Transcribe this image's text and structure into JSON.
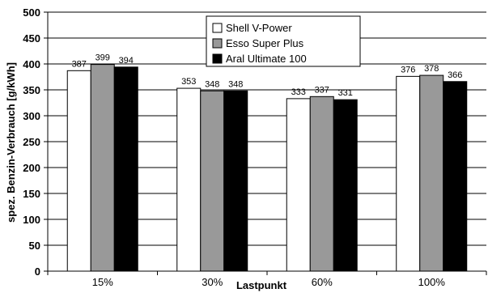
{
  "chart_data": {
    "type": "bar",
    "title": "",
    "xlabel": "Lastpunkt",
    "ylabel": "spez. Benzin-Verbrauch [g/kWh]",
    "ylim": [
      0,
      500
    ],
    "yticks": [
      0,
      50,
      100,
      150,
      200,
      250,
      300,
      350,
      400,
      450,
      500
    ],
    "grid": true,
    "legend_position": "top-center",
    "categories": [
      "15%",
      "30%",
      "60%",
      "100%"
    ],
    "series": [
      {
        "name": "Shell V-Power",
        "values": [
          387,
          353,
          333,
          376
        ],
        "color": "#ffffff"
      },
      {
        "name": "Esso Super Plus",
        "values": [
          399,
          348,
          337,
          378
        ],
        "color": "#999999"
      },
      {
        "name": "Aral Ultimate 100",
        "values": [
          394,
          348,
          331,
          366
        ],
        "color": "#000000"
      }
    ]
  }
}
